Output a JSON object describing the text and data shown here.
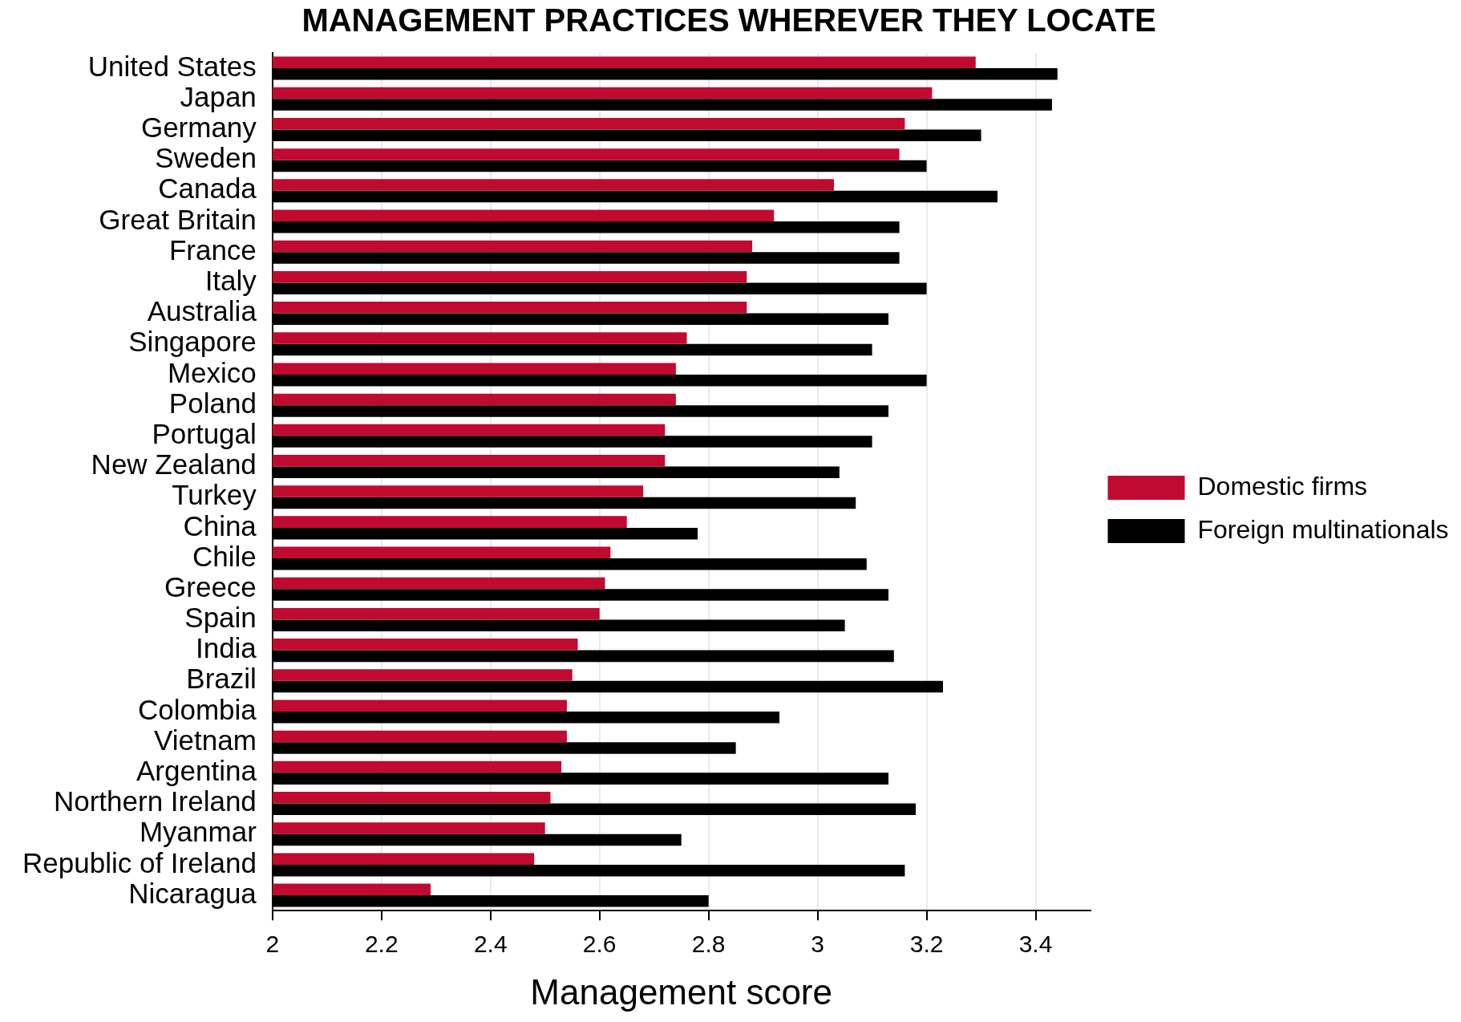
{
  "chart_data": {
    "type": "bar",
    "orientation": "horizontal",
    "title": "MANAGEMENT PRACTICES WHEREVER THEY LOCATE",
    "xlabel": "Management score",
    "categories": [
      "United States",
      "Japan",
      "Germany",
      "Sweden",
      "Canada",
      "Great Britain",
      "France",
      "Italy",
      "Australia",
      "Singapore",
      "Mexico",
      "Poland",
      "Portugal",
      "New Zealand",
      "Turkey",
      "China",
      "Chile",
      "Greece",
      "Spain",
      "India",
      "Brazil",
      "Colombia",
      "Vietnam",
      "Argentina",
      "Northern Ireland",
      "Myanmar",
      "Republic of Ireland",
      "Nicaragua"
    ],
    "series": [
      {
        "name": "Domestic firms",
        "color": "#c00a30",
        "values": [
          3.29,
          3.21,
          3.16,
          3.15,
          3.03,
          2.92,
          2.88,
          2.87,
          2.87,
          2.76,
          2.74,
          2.74,
          2.72,
          2.72,
          2.68,
          2.65,
          2.62,
          2.61,
          2.6,
          2.56,
          2.55,
          2.54,
          2.54,
          2.53,
          2.51,
          2.5,
          2.48,
          2.29
        ]
      },
      {
        "name": "Foreign multinationals",
        "color": "#000000",
        "values": [
          3.44,
          3.43,
          3.3,
          3.2,
          3.33,
          3.15,
          3.15,
          3.2,
          3.13,
          3.1,
          3.2,
          3.13,
          3.1,
          3.04,
          3.07,
          2.78,
          3.09,
          3.13,
          3.05,
          3.14,
          3.23,
          2.93,
          2.85,
          3.13,
          3.18,
          2.75,
          3.16,
          2.8
        ]
      }
    ],
    "xlim": [
      2,
      3.5
    ],
    "xticks": [
      2,
      2.2,
      2.4,
      2.6,
      2.8,
      3,
      3.2,
      3.4
    ],
    "grid": "x",
    "legend": "right"
  }
}
